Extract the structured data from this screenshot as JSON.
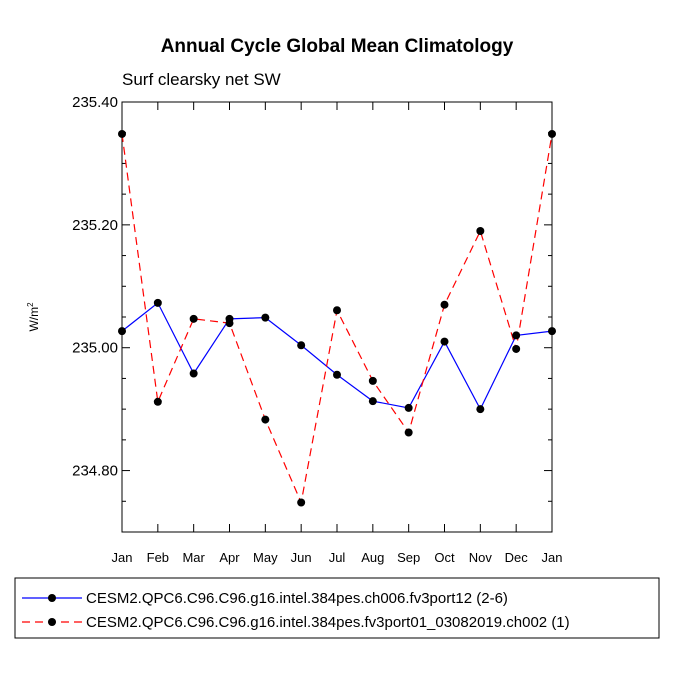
{
  "chart_data": {
    "type": "line",
    "title": "Annual Cycle Global Mean Climatology",
    "subtitle": "Surf clearsky net SW",
    "xlabel": "",
    "ylabel": "W/m",
    "ylabel_superscript": "2",
    "categories": [
      "Jan",
      "Feb",
      "Mar",
      "Apr",
      "May",
      "Jun",
      "Jul",
      "Aug",
      "Sep",
      "Oct",
      "Nov",
      "Dec",
      "Jan"
    ],
    "ylim": [
      234.7,
      235.4
    ],
    "y_major_ticks": [
      234.8,
      235.0,
      235.2,
      235.4
    ],
    "y_tick_labels": [
      "234.80",
      "235.00",
      "235.20",
      "235.40"
    ],
    "y_minor_step": 0.05,
    "grid": false,
    "series": [
      {
        "name": "CESM2.QPC6.C96.C96.g16.intel.384pes.ch006.fv3port12 (2-6)",
        "color": "#0000ff",
        "dash": "solid",
        "values": [
          235.027,
          235.073,
          234.958,
          235.047,
          235.049,
          235.004,
          234.956,
          234.913,
          234.902,
          235.01,
          234.9,
          235.02,
          235.027
        ]
      },
      {
        "name": "CESM2.QPC6.C96.C96.g16.intel.384pes.fv3port01_03082019.ch002 (1)",
        "color": "#ff0000",
        "dash": "dashed",
        "values": [
          235.348,
          234.912,
          235.047,
          235.04,
          234.883,
          234.748,
          235.061,
          234.946,
          234.862,
          235.07,
          235.19,
          234.998,
          235.348
        ]
      }
    ]
  }
}
